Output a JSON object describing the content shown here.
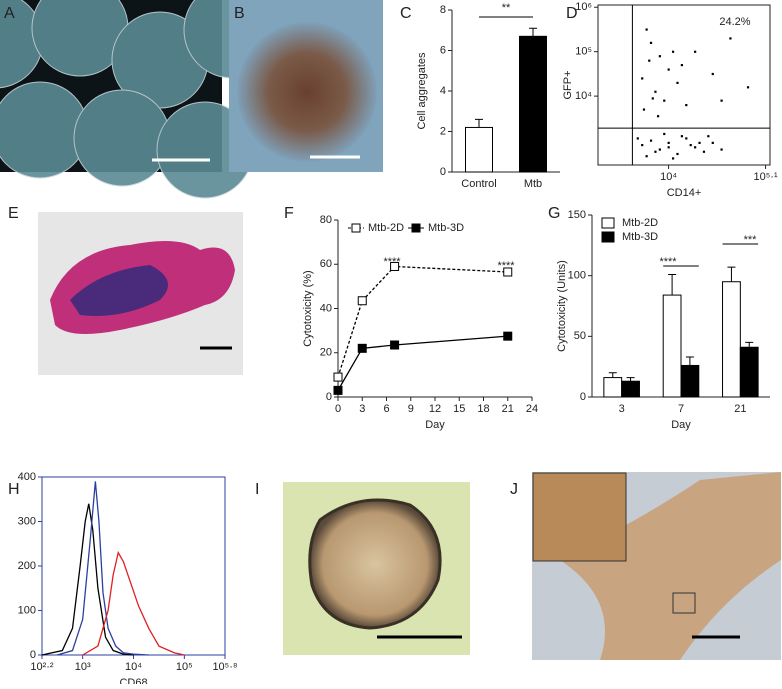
{
  "panel_labels": [
    "A",
    "B",
    "C",
    "D",
    "E",
    "F",
    "G",
    "H",
    "I",
    "J"
  ],
  "chart_data": [
    {
      "type": "bar",
      "ylabel": "Cell aggregates",
      "categories": [
        "Control",
        "Mtb"
      ],
      "values": [
        2.2,
        6.7
      ],
      "errors": [
        0.4,
        0.4
      ],
      "colors": [
        "#ffffff",
        "#000000"
      ],
      "ylim": [
        0,
        8
      ],
      "yticks": [
        0,
        2,
        4,
        6,
        8
      ],
      "annotations": [
        "**"
      ]
    },
    {
      "type": "scatter",
      "xlabel": "CD14+",
      "ylabel": "GFP+",
      "xlim": [
        3.2,
        5.15
      ],
      "ylim": [
        2.45,
        6.05
      ],
      "xticks": [
        {
          "value": 4,
          "label": "10⁴"
        },
        {
          "value": 5.1,
          "label": "10⁵·¹"
        }
      ],
      "yticks": [
        {
          "value": 4,
          "label": "10⁴"
        },
        {
          "value": 5,
          "label": "10⁵"
        },
        {
          "value": 6,
          "label": "10⁶"
        }
      ],
      "gate_x": 3.59,
      "gate_y": 3.28,
      "annotations": [
        "24.2%"
      ],
      "x": [
        3.75,
        3.8,
        3.9,
        4.0,
        3.7,
        3.85,
        4.1,
        3.95,
        4.2,
        3.72,
        4.3,
        4.5,
        4.7,
        3.88,
        4.05,
        3.78,
        4.6,
        4.15,
        3.82,
        4.9,
        3.7,
        3.8,
        3.9,
        4.0,
        4.1,
        4.2,
        4.3,
        4.4,
        4.5,
        3.75,
        3.95,
        4.05,
        4.25,
        4.15,
        4.35,
        3.85,
        4.6,
        4.45,
        4.0,
        3.65
      ],
      "values": [
        5.5,
        5.2,
        4.9,
        4.6,
        4.4,
        4.1,
        4.3,
        3.9,
        3.8,
        3.7,
        5.0,
        4.5,
        5.3,
        3.55,
        5.0,
        4.8,
        3.9,
        4.7,
        3.95,
        4.2,
        2.9,
        3.0,
        2.8,
        2.95,
        2.7,
        3.05,
        2.85,
        2.75,
        2.95,
        2.65,
        3.15,
        2.6,
        2.9,
        3.1,
        2.95,
        2.75,
        2.8,
        3.1,
        2.85,
        3.05
      ]
    },
    {
      "type": "line",
      "xlabel": "Day",
      "ylabel": "Cytotoxicity (%)",
      "xlim": [
        0,
        24
      ],
      "ylim": [
        0,
        80
      ],
      "xticks": [
        0,
        3,
        6,
        9,
        12,
        15,
        18,
        21,
        24
      ],
      "yticks": [
        0,
        20,
        40,
        60,
        80
      ],
      "legend": "upper left",
      "x": [
        0,
        3,
        7,
        21
      ],
      "series": [
        {
          "name": "Mtb-2D",
          "color": "#000000",
          "dashed": true,
          "marker": "open-square",
          "values": [
            9,
            43.5,
            59,
            56.5
          ]
        },
        {
          "name": "Mtb-3D",
          "color": "#000000",
          "dashed": false,
          "marker": "square",
          "values": [
            3,
            22,
            23.5,
            27.5
          ]
        }
      ],
      "annotations": [
        "****",
        "****"
      ]
    },
    {
      "type": "bar",
      "xlabel": "Day",
      "ylabel": "Cytotoxicity (Units)",
      "categories": [
        "3",
        "7",
        "21"
      ],
      "ylim": [
        0,
        150
      ],
      "yticks": [
        0,
        50,
        100,
        150
      ],
      "legend": "upper left",
      "series": [
        {
          "name": "Mtb-2D",
          "color": "#ffffff",
          "values": [
            16,
            84,
            95
          ],
          "errors": [
            4,
            17,
            12
          ]
        },
        {
          "name": "Mtb-3D",
          "color": "#000000",
          "values": [
            13,
            26,
            41
          ],
          "errors": [
            3,
            7,
            4
          ]
        }
      ],
      "annotations": [
        "****",
        "***"
      ]
    },
    {
      "type": "line",
      "xlabel": "CD68",
      "xlim": [
        2.2,
        5.8
      ],
      "ylim": [
        0,
        400
      ],
      "xticks": [
        {
          "value": 2.2,
          "label": "10²·²"
        },
        {
          "value": 3,
          "label": "10³"
        },
        {
          "value": 4,
          "label": "10⁴"
        },
        {
          "value": 5,
          "label": "10⁵"
        },
        {
          "value": 5.8,
          "label": "10⁵·⁸"
        }
      ],
      "yticks": [
        0,
        100,
        200,
        300,
        400
      ],
      "series": [
        {
          "color": "#000000",
          "x": [
            2.2,
            2.6,
            2.8,
            2.95,
            3.05,
            3.12,
            3.2,
            3.3,
            3.45,
            3.6,
            3.8,
            4.0
          ],
          "values": [
            0,
            10,
            60,
            200,
            300,
            340,
            280,
            150,
            40,
            10,
            2,
            0
          ]
        },
        {
          "color": "#2b3fa0",
          "x": [
            2.5,
            2.8,
            3.0,
            3.15,
            3.25,
            3.32,
            3.4,
            3.5,
            3.65,
            3.8,
            4.0,
            4.3
          ],
          "values": [
            0,
            10,
            80,
            260,
            390,
            300,
            140,
            60,
            20,
            5,
            2,
            0
          ]
        },
        {
          "color": "#e02020",
          "x": [
            3.0,
            3.3,
            3.5,
            3.6,
            3.7,
            3.8,
            3.95,
            4.1,
            4.3,
            4.5,
            4.8,
            5.0
          ],
          "values": [
            0,
            20,
            100,
            180,
            230,
            210,
            160,
            110,
            60,
            20,
            5,
            0
          ]
        }
      ]
    }
  ]
}
